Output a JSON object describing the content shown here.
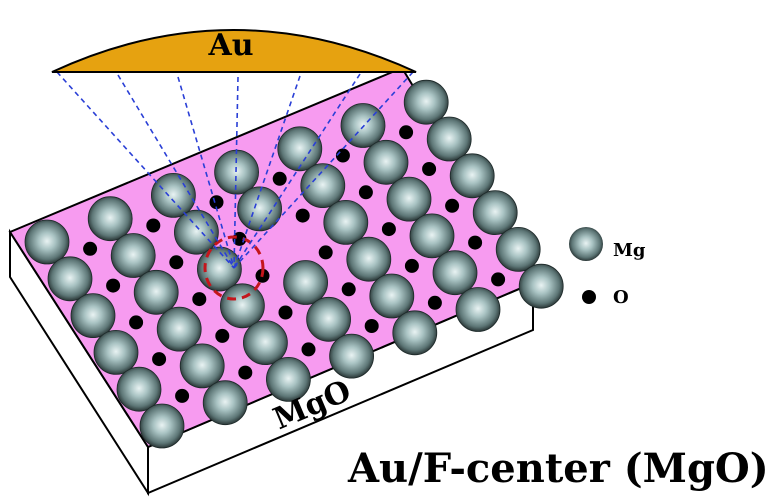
{
  "cluster_label": "Au",
  "substrate_label": "MgO",
  "caption": "Au/F-center (MgO)",
  "legend": {
    "items": [
      {
        "symbol": "mg-sphere-icon",
        "label": "Mg"
      },
      {
        "symbol": "o-dot-icon",
        "label": "O"
      }
    ]
  },
  "colors": {
    "surface": "#f79bf0",
    "gold": "#e6a210",
    "mg_sphere": "#8fb0b0",
    "oxygen": "#000000",
    "bond_lines": "#2a3fd6",
    "vacancy": "#c4161c"
  }
}
